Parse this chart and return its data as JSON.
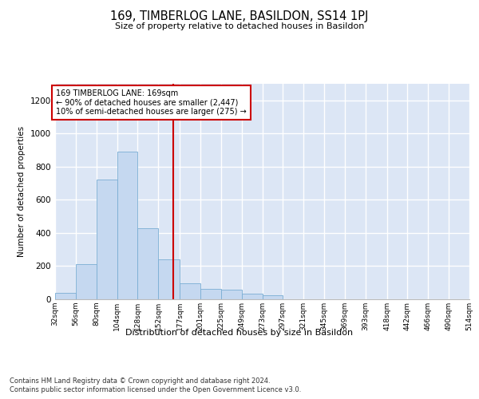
{
  "title": "169, TIMBERLOG LANE, BASILDON, SS14 1PJ",
  "subtitle": "Size of property relative to detached houses in Basildon",
  "xlabel": "Distribution of detached houses by size in Basildon",
  "ylabel": "Number of detached properties",
  "footer_line1": "Contains HM Land Registry data © Crown copyright and database right 2024.",
  "footer_line2": "Contains public sector information licensed under the Open Government Licence v3.0.",
  "annotation_line1": "169 TIMBERLOG LANE: 169sqm",
  "annotation_line2": "← 90% of detached houses are smaller (2,447)",
  "annotation_line3": "10% of semi-detached houses are larger (275) →",
  "property_line_x": 169,
  "bar_color": "#c5d8f0",
  "bar_edge_color": "#7aadd4",
  "property_line_color": "#cc0000",
  "annotation_box_color": "#cc0000",
  "background_color": "#dce6f5",
  "ylim": [
    0,
    1300
  ],
  "bins": [
    32,
    56,
    80,
    104,
    128,
    152,
    177,
    201,
    225,
    249,
    273,
    297,
    321,
    345,
    369,
    393,
    418,
    442,
    466,
    490,
    514
  ],
  "bin_labels": [
    "32sqm",
    "56sqm",
    "80sqm",
    "104sqm",
    "128sqm",
    "152sqm",
    "177sqm",
    "201sqm",
    "225sqm",
    "249sqm",
    "273sqm",
    "297sqm",
    "321sqm",
    "345sqm",
    "369sqm",
    "393sqm",
    "418sqm",
    "442sqm",
    "466sqm",
    "490sqm",
    "514sqm"
  ],
  "bar_heights": [
    40,
    210,
    720,
    890,
    430,
    240,
    95,
    65,
    60,
    35,
    25,
    0,
    0,
    0,
    0,
    0,
    0,
    0,
    0,
    0
  ],
  "yticks": [
    0,
    200,
    400,
    600,
    800,
    1000,
    1200
  ]
}
